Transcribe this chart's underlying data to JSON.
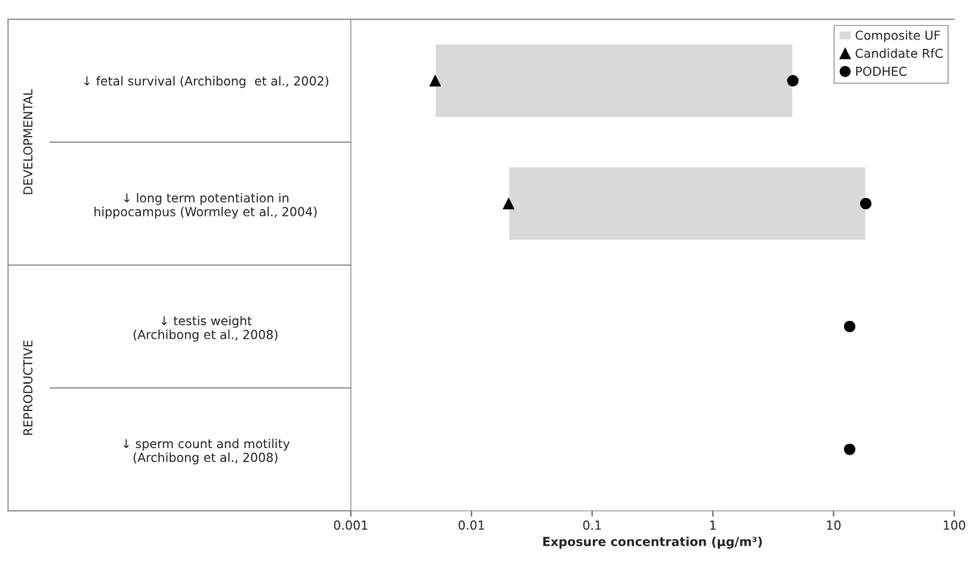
{
  "chart_data": {
    "type": "bar",
    "orientation": "horizontal",
    "log": "x",
    "categories": [
      "↓ fetal survival (Archibong  et al., 2002)",
      "↓ long term potentiation in\nhippocampus (Wormley et al., 2004)",
      "↓ testis weight\n(Archibong et al., 2008)",
      "↓ sperm count and motility\n(Archibong et al., 2008)"
    ],
    "series": [
      {
        "name": "Composite UF",
        "color": "#d9d9d9",
        "base": [
          0.005,
          0.0203,
          null,
          null
        ],
        "values": [
          4.595,
          18.48,
          null,
          null
        ]
      },
      {
        "name": "Candidate RfC",
        "type": "scatter",
        "marker": "triangle",
        "color": "#000000",
        "values": [
          0.005,
          0.0203,
          null,
          null
        ]
      },
      {
        "name": "PODHEC",
        "type": "scatter",
        "marker": "circle",
        "color": "#000000",
        "values": [
          4.6,
          18.5,
          13.6,
          13.6
        ]
      }
    ],
    "xlim": [
      0.001,
      100
    ],
    "xticks": [
      0.001,
      0.01,
      0.1,
      1,
      10,
      100
    ],
    "xlabel": "Exposure concentration (µg/m³)",
    "annotations": [
      "DEVELOPMENTAL",
      "REPRODUCTIVE"
    ],
    "legend": "top right",
    "grid": false
  }
}
